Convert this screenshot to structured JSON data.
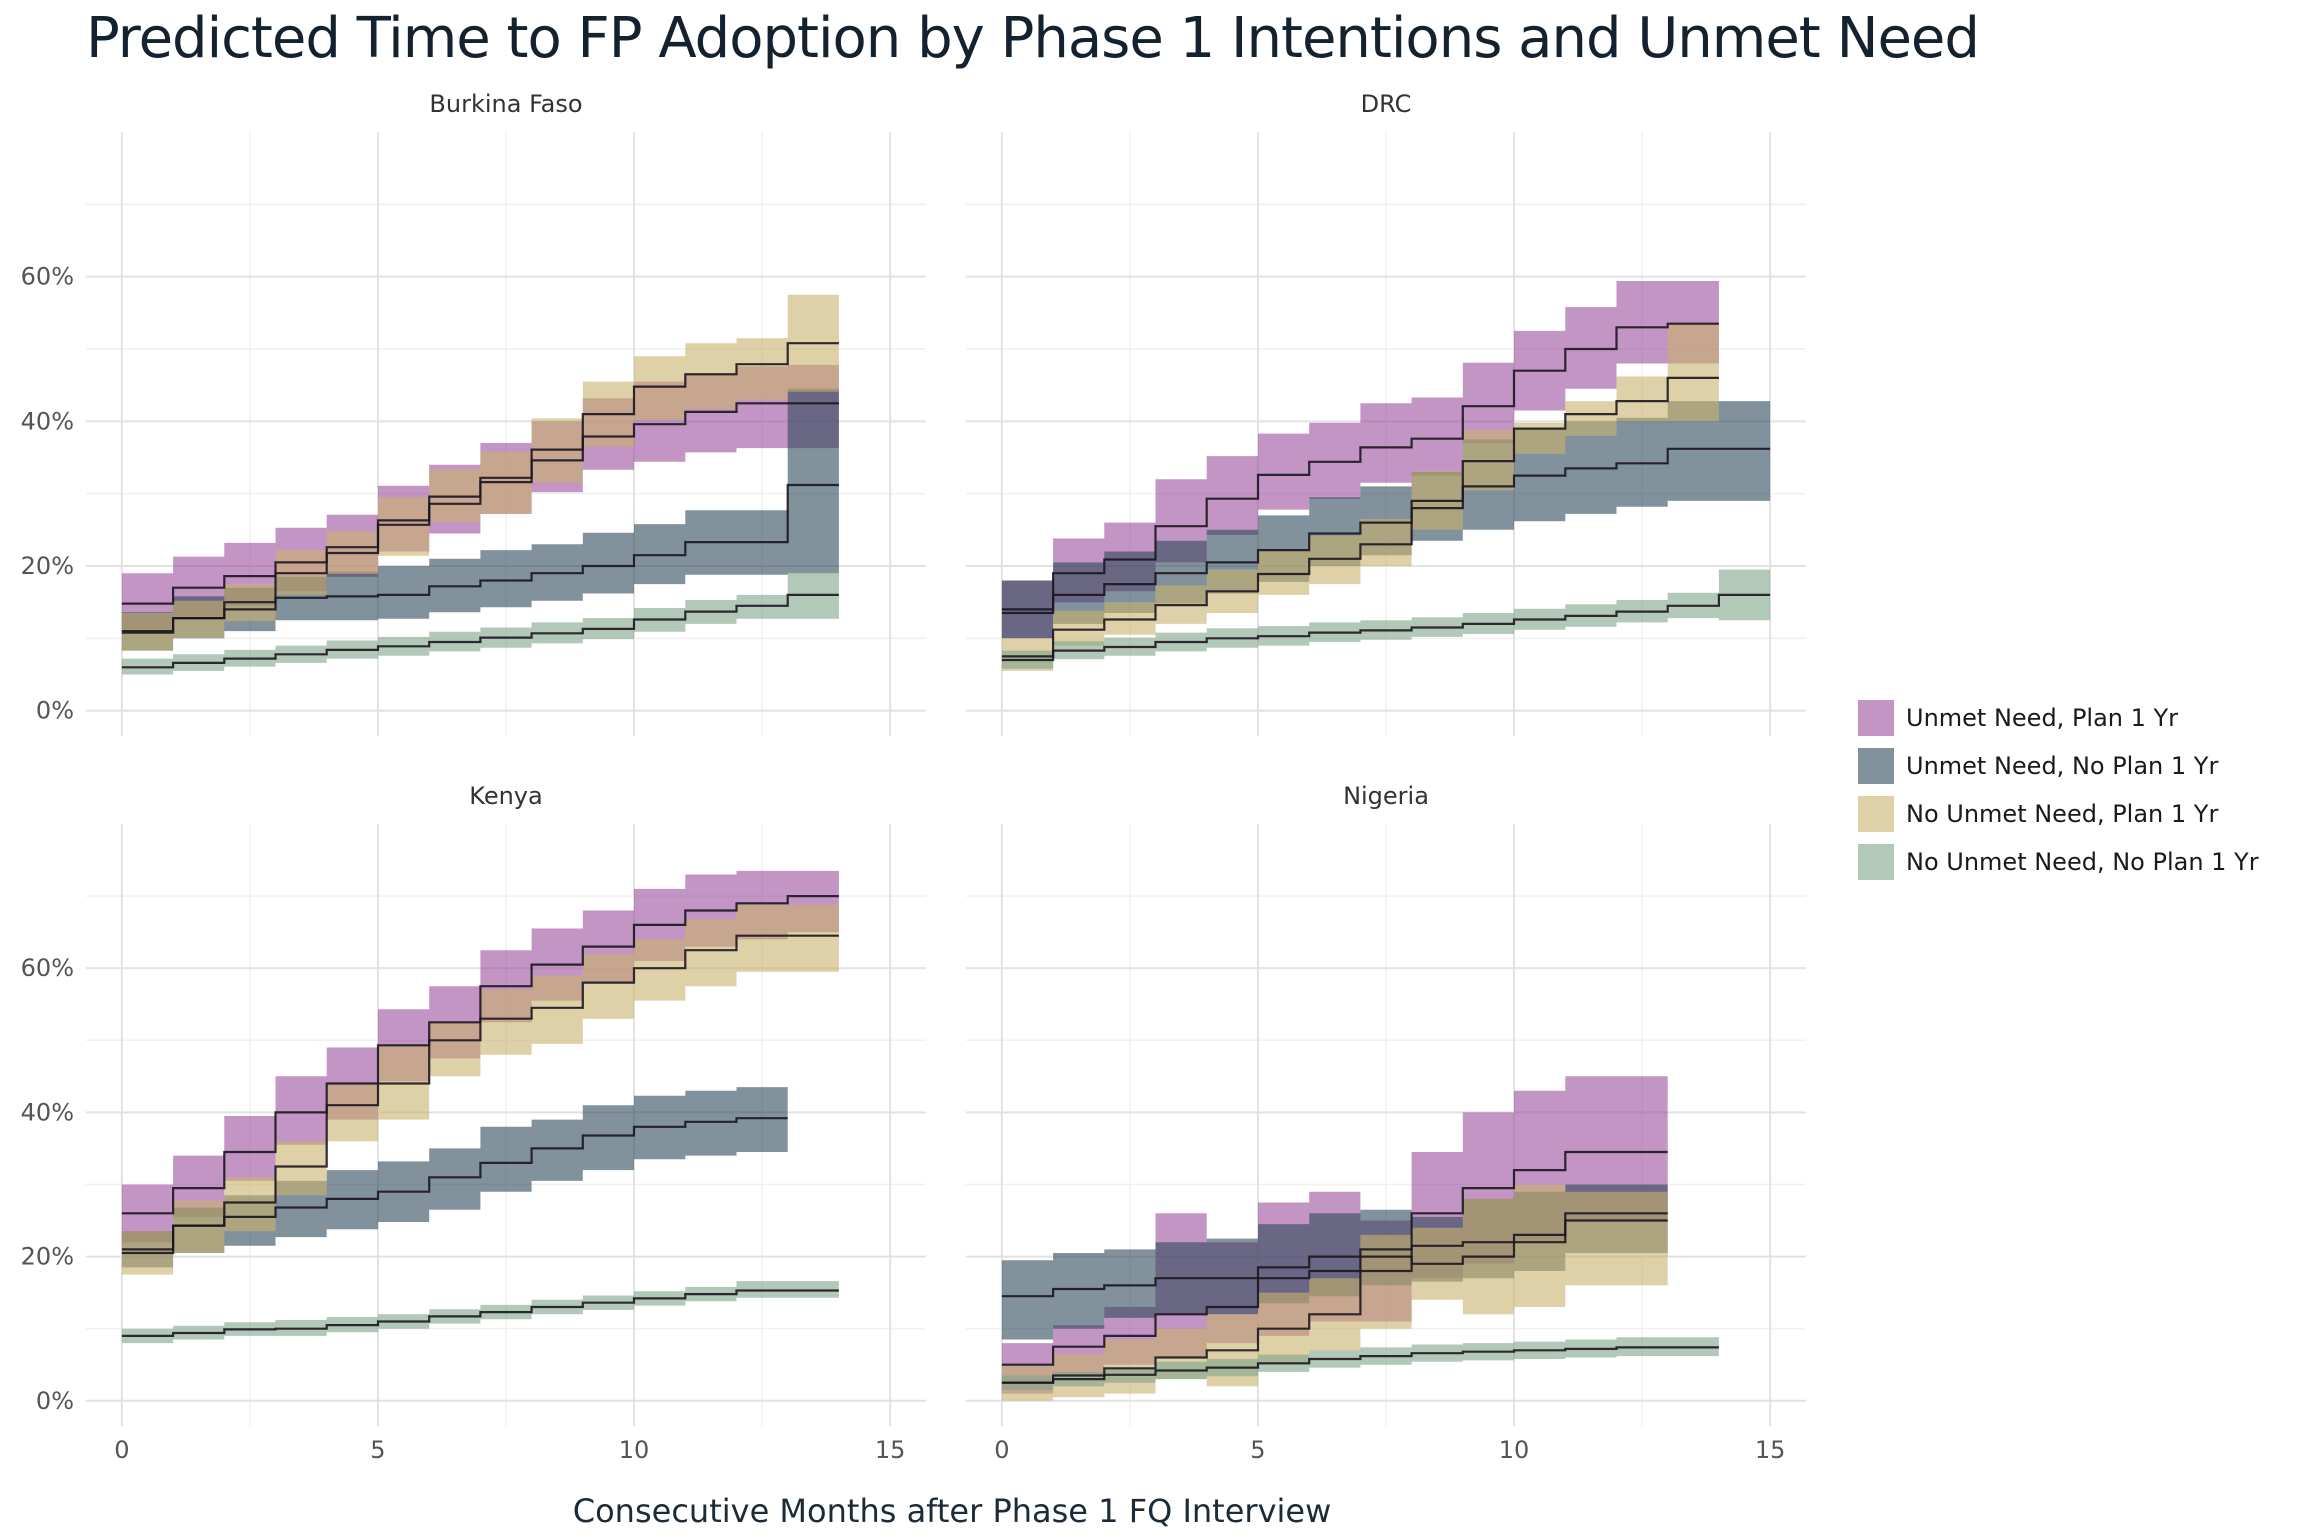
{
  "chart_data": {
    "type": "step-ribbon",
    "title": "Predicted Time to FP Adoption by Phase 1 Intentions and Unmet Need",
    "xlabel": "Consecutive Months after Phase 1 FQ Interview",
    "ylabel": "",
    "xlim": [
      -0.7,
      15.7
    ],
    "ylim": [
      -0.035,
      0.8
    ],
    "x_ticks": [
      0,
      5,
      10,
      15
    ],
    "y_ticks": [
      0,
      0.2,
      0.4,
      0.6
    ],
    "y_tick_labels": [
      "0%",
      "20%",
      "40%",
      "60%"
    ],
    "grid": true,
    "legend_position": "right",
    "series_order": [
      "unmet_plan",
      "unmet_noplan",
      "nounmet_plan",
      "nounmet_noplan"
    ],
    "series_info": {
      "unmet_plan": {
        "name": "Unmet Need, Plan 1 Yr",
        "color": "#9a4f9c"
      },
      "unmet_noplan": {
        "name": "Unmet Need, No Plan 1 Yr",
        "color": "#2f4a5a"
      },
      "nounmet_plan": {
        "name": "No Unmet Need, Plan 1 Yr",
        "color": "#c9b36c"
      },
      "nounmet_noplan": {
        "name": "No Unmet Need, No Plan 1 Yr",
        "color": "#7ea48a"
      }
    },
    "panels": [
      {
        "name": "Burkina Faso",
        "series": {
          "unmet_plan": {
            "est": [
              0.148,
              0.17,
              0.186,
              0.205,
              0.226,
              0.263,
              0.286,
              0.316,
              0.346,
              0.379,
              0.396,
              0.413,
              0.425,
              0.425
            ],
            "lower": [
              0.112,
              0.13,
              0.145,
              0.165,
              0.185,
              0.22,
              0.245,
              0.272,
              0.302,
              0.333,
              0.344,
              0.357,
              0.363,
              0.363
            ],
            "upper": [
              0.19,
              0.213,
              0.232,
              0.253,
              0.271,
              0.311,
              0.34,
              0.37,
              0.4,
              0.432,
              0.455,
              0.467,
              0.476,
              0.478
            ]
          },
          "unmet_noplan": {
            "est": [
              0.11,
              0.128,
              0.14,
              0.156,
              0.158,
              0.16,
              0.172,
              0.18,
              0.19,
              0.2,
              0.215,
              0.233,
              0.233,
              0.312
            ],
            "lower": [
              0.083,
              0.1,
              0.11,
              0.125,
              0.125,
              0.127,
              0.136,
              0.143,
              0.152,
              0.162,
              0.175,
              0.188,
              0.188,
              0.19
            ],
            "upper": [
              0.136,
              0.158,
              0.17,
              0.185,
              0.192,
              0.2,
              0.21,
              0.222,
              0.23,
              0.246,
              0.258,
              0.277,
              0.277,
              0.445
            ]
          },
          "nounmet_plan": {
            "est": [
              0.108,
              0.128,
              0.15,
              0.19,
              0.218,
              0.257,
              0.296,
              0.322,
              0.361,
              0.41,
              0.448,
              0.465,
              0.479,
              0.508
            ],
            "lower": [
              0.083,
              0.1,
              0.124,
              0.16,
              0.189,
              0.214,
              0.261,
              0.272,
              0.315,
              0.365,
              0.402,
              0.417,
              0.43,
              0.441
            ],
            "upper": [
              0.135,
              0.152,
              0.175,
              0.222,
              0.248,
              0.295,
              0.334,
              0.358,
              0.404,
              0.455,
              0.49,
              0.508,
              0.515,
              0.575
            ]
          },
          "nounmet_noplan": {
            "est": [
              0.06,
              0.066,
              0.072,
              0.078,
              0.084,
              0.089,
              0.095,
              0.101,
              0.107,
              0.113,
              0.126,
              0.137,
              0.145,
              0.16
            ],
            "lower": [
              0.05,
              0.055,
              0.061,
              0.066,
              0.072,
              0.076,
              0.082,
              0.087,
              0.093,
              0.099,
              0.109,
              0.12,
              0.127,
              0.127
            ],
            "upper": [
              0.072,
              0.078,
              0.084,
              0.09,
              0.097,
              0.102,
              0.109,
              0.115,
              0.122,
              0.128,
              0.142,
              0.153,
              0.16,
              0.193
            ]
          }
        }
      },
      {
        "name": "DRC",
        "series": {
          "unmet_plan": {
            "est": [
              0.135,
              0.19,
              0.209,
              0.255,
              0.293,
              0.326,
              0.344,
              0.364,
              0.376,
              0.421,
              0.47,
              0.5,
              0.53,
              0.535
            ],
            "lower": [
              0.1,
              0.15,
              0.165,
              0.205,
              0.243,
              0.278,
              0.293,
              0.315,
              0.325,
              0.37,
              0.415,
              0.445,
              0.48,
              0.48
            ],
            "upper": [
              0.18,
              0.238,
              0.26,
              0.32,
              0.352,
              0.383,
              0.398,
              0.425,
              0.433,
              0.481,
              0.525,
              0.558,
              0.594,
              0.594
            ]
          },
          "unmet_noplan": {
            "est": [
              0.14,
              0.16,
              0.175,
              0.19,
              0.205,
              0.222,
              0.245,
              0.26,
              0.28,
              0.31,
              0.325,
              0.335,
              0.342,
              0.362,
              0.362
            ],
            "lower": [
              0.1,
              0.12,
              0.135,
              0.148,
              0.162,
              0.178,
              0.2,
              0.215,
              0.235,
              0.25,
              0.262,
              0.272,
              0.282,
              0.29,
              0.29
            ],
            "upper": [
              0.18,
              0.205,
              0.22,
              0.235,
              0.25,
              0.27,
              0.295,
              0.31,
              0.33,
              0.375,
              0.39,
              0.4,
              0.405,
              0.428,
              0.428
            ]
          },
          "nounmet_plan": {
            "est": [
              0.075,
              0.112,
              0.126,
              0.146,
              0.165,
              0.189,
              0.21,
              0.23,
              0.29,
              0.345,
              0.39,
              0.41,
              0.428,
              0.46
            ],
            "lower": [
              0.055,
              0.09,
              0.105,
              0.12,
              0.135,
              0.16,
              0.175,
              0.2,
              0.25,
              0.305,
              0.355,
              0.38,
              0.4,
              0.4
            ],
            "upper": [
              0.1,
              0.138,
              0.15,
              0.173,
              0.195,
              0.221,
              0.242,
              0.265,
              0.331,
              0.388,
              0.398,
              0.428,
              0.462,
              0.535
            ]
          },
          "nounmet_noplan": {
            "est": [
              0.07,
              0.083,
              0.088,
              0.095,
              0.1,
              0.103,
              0.108,
              0.111,
              0.115,
              0.12,
              0.126,
              0.131,
              0.137,
              0.145,
              0.16
            ],
            "lower": [
              0.058,
              0.071,
              0.076,
              0.082,
              0.087,
              0.09,
              0.095,
              0.098,
              0.102,
              0.106,
              0.112,
              0.116,
              0.122,
              0.128,
              0.125
            ],
            "upper": [
              0.083,
              0.096,
              0.101,
              0.108,
              0.114,
              0.117,
              0.122,
              0.125,
              0.129,
              0.135,
              0.141,
              0.147,
              0.153,
              0.163,
              0.195
            ]
          }
        }
      },
      {
        "name": "Kenya",
        "series": {
          "unmet_plan": {
            "est": [
              0.26,
              0.295,
              0.345,
              0.4,
              0.44,
              0.493,
              0.525,
              0.575,
              0.605,
              0.63,
              0.66,
              0.68,
              0.69,
              0.7
            ],
            "lower": [
              0.22,
              0.255,
              0.305,
              0.355,
              0.39,
              0.443,
              0.475,
              0.525,
              0.555,
              0.58,
              0.61,
              0.63,
              0.64,
              0.65
            ],
            "upper": [
              0.3,
              0.34,
              0.395,
              0.45,
              0.49,
              0.543,
              0.575,
              0.625,
              0.655,
              0.68,
              0.71,
              0.73,
              0.735,
              0.735
            ]
          },
          "unmet_noplan": {
            "est": [
              0.21,
              0.243,
              0.255,
              0.268,
              0.28,
              0.29,
              0.31,
              0.33,
              0.35,
              0.368,
              0.38,
              0.387,
              0.392
            ],
            "lower": [
              0.185,
              0.205,
              0.215,
              0.227,
              0.238,
              0.248,
              0.265,
              0.29,
              0.305,
              0.32,
              0.335,
              0.34,
              0.345
            ],
            "upper": [
              0.235,
              0.268,
              0.285,
              0.305,
              0.32,
              0.332,
              0.35,
              0.38,
              0.39,
              0.41,
              0.423,
              0.43,
              0.435
            ]
          },
          "nounmet_plan": {
            "est": [
              0.205,
              0.243,
              0.275,
              0.325,
              0.41,
              0.44,
              0.5,
              0.53,
              0.545,
              0.58,
              0.6,
              0.625,
              0.645,
              0.645
            ],
            "lower": [
              0.175,
              0.205,
              0.235,
              0.285,
              0.36,
              0.39,
              0.45,
              0.48,
              0.495,
              0.53,
              0.555,
              0.575,
              0.595,
              0.595
            ],
            "upper": [
              0.235,
              0.278,
              0.31,
              0.36,
              0.44,
              0.493,
              0.525,
              0.57,
              0.59,
              0.62,
              0.64,
              0.668,
              0.688,
              0.688
            ]
          },
          "nounmet_noplan": {
            "est": [
              0.09,
              0.094,
              0.099,
              0.1,
              0.105,
              0.11,
              0.117,
              0.123,
              0.13,
              0.136,
              0.142,
              0.148,
              0.153,
              0.153
            ],
            "lower": [
              0.08,
              0.085,
              0.09,
              0.09,
              0.095,
              0.1,
              0.107,
              0.113,
              0.12,
              0.126,
              0.132,
              0.138,
              0.143,
              0.143
            ],
            "upper": [
              0.1,
              0.104,
              0.109,
              0.112,
              0.116,
              0.12,
              0.127,
              0.133,
              0.14,
              0.146,
              0.152,
              0.158,
              0.166,
              0.166
            ]
          }
        }
      },
      {
        "name": "Nigeria",
        "series": {
          "unmet_plan": {
            "est": [
              0.05,
              0.075,
              0.09,
              0.12,
              0.13,
              0.17,
              0.18,
              0.18,
              0.26,
              0.295,
              0.32,
              0.345,
              0.345
            ],
            "lower": [
              0.01,
              0.035,
              0.05,
              0.06,
              0.08,
              0.09,
              0.11,
              0.11,
              0.17,
              0.19,
              0.22,
              0.25,
              0.25
            ],
            "upper": [
              0.08,
              0.105,
              0.13,
              0.26,
              0.22,
              0.275,
              0.29,
              0.25,
              0.345,
              0.4,
              0.43,
              0.45,
              0.45
            ]
          },
          "unmet_noplan": {
            "est": [
              0.145,
              0.155,
              0.16,
              0.17,
              0.17,
              0.185,
              0.2,
              0.21,
              0.215,
              0.22,
              0.23,
              0.26,
              0.26
            ],
            "lower": [
              0.085,
              0.1,
              0.115,
              0.12,
              0.12,
              0.135,
              0.145,
              0.16,
              0.165,
              0.17,
              0.18,
              0.205,
              0.205
            ],
            "upper": [
              0.195,
              0.205,
              0.21,
              0.22,
              0.225,
              0.245,
              0.26,
              0.265,
              0.255,
              0.28,
              0.29,
              0.3,
              0.3
            ]
          },
          "nounmet_plan": {
            "est": [
              0.025,
              0.035,
              0.045,
              0.06,
              0.07,
              0.1,
              0.12,
              0.2,
              0.19,
              0.2,
              0.22,
              0.25,
              0.25
            ],
            "lower": [
              0.0,
              0.005,
              0.01,
              0.03,
              0.02,
              0.05,
              0.07,
              0.1,
              0.14,
              0.12,
              0.13,
              0.16,
              0.16
            ],
            "upper": [
              0.05,
              0.065,
              0.085,
              0.1,
              0.12,
              0.15,
              0.17,
              0.23,
              0.24,
              0.28,
              0.3,
              0.29,
              0.29
            ]
          },
          "nounmet_noplan": {
            "est": [
              0.025,
              0.03,
              0.036,
              0.042,
              0.046,
              0.052,
              0.058,
              0.062,
              0.066,
              0.068,
              0.07,
              0.072,
              0.074,
              0.074
            ],
            "lower": [
              0.015,
              0.02,
              0.025,
              0.03,
              0.034,
              0.04,
              0.046,
              0.05,
              0.054,
              0.056,
              0.058,
              0.06,
              0.062,
              0.062
            ],
            "upper": [
              0.035,
              0.04,
              0.046,
              0.054,
              0.058,
              0.064,
              0.07,
              0.074,
              0.078,
              0.08,
              0.082,
              0.085,
              0.088,
              0.088
            ]
          }
        }
      }
    ]
  }
}
